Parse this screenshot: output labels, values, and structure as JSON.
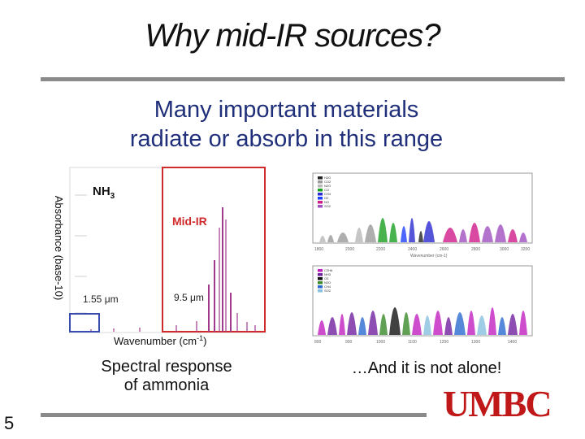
{
  "slide": {
    "title": "Why mid-IR sources?",
    "subtitle_line1": "Many important materials",
    "subtitle_line2": "radiate or absorb in this range",
    "caption_left_line1": "Spectral response",
    "caption_left_line2": "of ammonia",
    "caption_right": "…And it is not alone!",
    "page_number": "5",
    "logo_text": "UMBC"
  },
  "ammonia_plot": {
    "species": "NH",
    "species_subscript": "3",
    "region_label": "Mid-IR",
    "marker_left": "1.55 μm",
    "marker_right": "9.5 μm",
    "ylabel": "Absorbance (base-10)",
    "xlabel": "Wavenumber (cm",
    "xlabel_exp": "-1",
    "xlabel_end": ")",
    "colors": {
      "highlight": "#d02a2a",
      "marker_box": "#3a4bb0",
      "peaks": "#a03a8a"
    }
  },
  "spectra_top": {
    "legend": [
      "H2O",
      "CO2",
      "N2O",
      "CO",
      "CH4",
      "O2",
      "NO",
      "SO2"
    ],
    "colors": [
      "#222222",
      "#9a9a9a",
      "#b8b8b8",
      "#1aa020",
      "#2a2ad0",
      "#2040ff",
      "#d01a8a",
      "#a050c0"
    ]
  },
  "spectra_bottom": {
    "legend": [
      "C2H6",
      "NH3",
      "O3",
      "N2O",
      "CH4",
      "SO2"
    ],
    "colors": [
      "#c020c0",
      "#7020a0",
      "#111111",
      "#3a8a2a",
      "#2a6ad0",
      "#88c0e0"
    ]
  }
}
